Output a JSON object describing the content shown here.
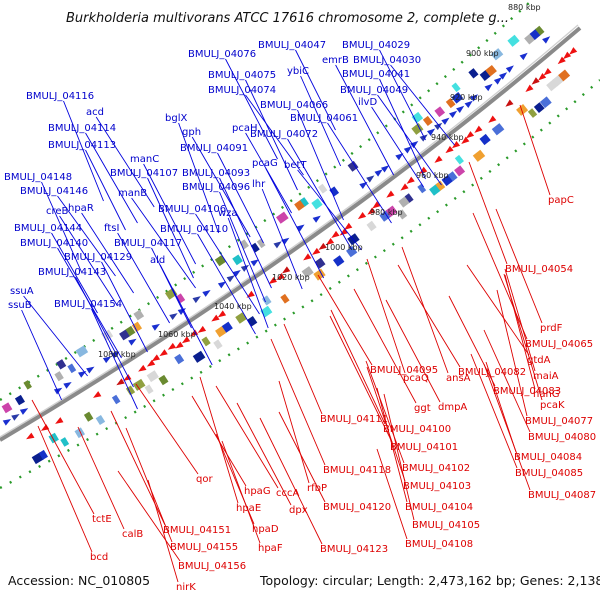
{
  "title": "Burkholderia multivorans ATCC 17616 chromosome 2, complete g...",
  "footer": {
    "accession": "Accession: NC_010805",
    "summary": "Topology: circular; Length: 2,473,162 bp; Genes: 2,138"
  },
  "colors": {
    "forward_label": "#0000cc",
    "reverse_label": "#dd0000",
    "backbone": "#888888",
    "tick_dots": "#2a9a2a"
  },
  "ticks": [
    "880 kbp",
    "900 kbp",
    "920 kbp",
    "940 kbp",
    "960 kbp",
    "980 kbp",
    "1000 kbp",
    "1020 kbp",
    "1040 kbp",
    "1060 kbp",
    "1080 kbp"
  ],
  "forward_labels": [
    "BMULJ_04047",
    "BMULJ_04029",
    "BMULJ_04076",
    "emrB",
    "BMULJ_04030",
    "ybiC",
    "BMULJ_04041",
    "BMULJ_04075",
    "BMULJ_04074",
    "BMULJ_04049",
    "BMULJ_04116",
    "BMULJ_04066",
    "ilvD",
    "acd",
    "BMULJ_04061",
    "bglX",
    "pcaH",
    "BMULJ_04114",
    "gph",
    "BMULJ_04072",
    "BMULJ_04113",
    "BMULJ_04091",
    "manC",
    "pcaG",
    "betT",
    "BMULJ_04148",
    "BMULJ_04107",
    "BMULJ_04093",
    "BMULJ_04146",
    "manB",
    "lhr",
    "BMULJ_04096",
    "hpaR",
    "creB",
    "BMULJ_04106",
    "wza",
    "BMULJ_04144",
    "ftsI",
    "BMULJ_04110",
    "BMULJ_04140",
    "BMULJ_04117",
    "BMULJ_04129",
    "ald",
    "BMULJ_04143",
    "ssuA",
    "ssuB",
    "BMULJ_04154"
  ],
  "reverse_labels": [
    "papC",
    "BMULJ_04054",
    "prdF",
    "BMULJ_04065",
    "gtdA",
    "maiA",
    "pcaQ",
    "ansA",
    "BMULJ_04095",
    "BMULJ_04082",
    "nahG",
    "pcaK",
    "BMULJ_04083",
    "dmpA",
    "ggt",
    "BMULJ_04077",
    "BMULJ_04111",
    "BMULJ_04080",
    "BMULJ_04100",
    "BMULJ_04101",
    "BMULJ_04084",
    "BMULJ_04102",
    "BMULJ_04085",
    "BMULJ_04118",
    "qor",
    "rfbP",
    "BMULJ_04103",
    "BMULJ_04087",
    "hpaG",
    "cccA",
    "BMULJ_04104",
    "hpaE",
    "BMULJ_04120",
    "dpx",
    "tctE",
    "BMULJ_04105",
    "hpaD",
    "calB",
    "BMULJ_04151",
    "BMULJ_04123",
    "BMULJ_04108",
    "hpaF",
    "BMULJ_04155",
    "bcd",
    "BMULJ_04156",
    "nirK"
  ]
}
